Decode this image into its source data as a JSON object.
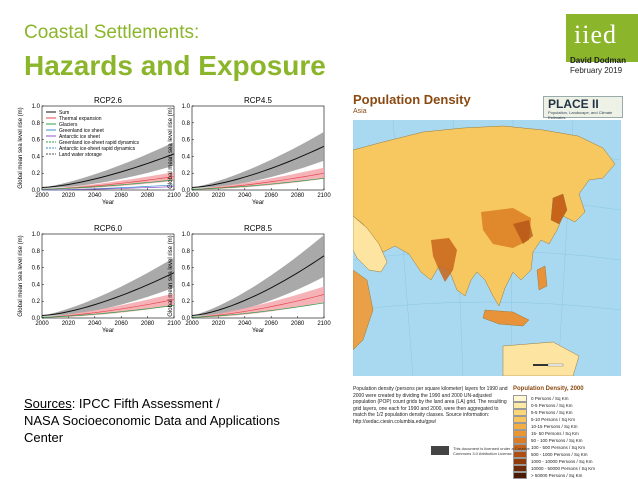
{
  "slide": {
    "title_line1": "Coastal Settlements:",
    "title_line2": "Hazards and Exposure",
    "logo_text": "iied",
    "author": "David Dodman",
    "date": "February 2019",
    "sources_label": "Sources",
    "sources_rest": ": IPCC Fifth Assessment /",
    "sources_line2": "NASA Socioeconomic Data and Applications",
    "sources_line3": "Center"
  },
  "colors": {
    "accent": "#8bb52a",
    "map_title": "#8a4a12"
  },
  "chart_data": [
    {
      "type": "line",
      "title": "RCP2.6",
      "xlabel": "Year",
      "ylabel": "Global mean sea level rise (m)",
      "xlim": [
        2000,
        2100
      ],
      "ylim": [
        0,
        1.0
      ],
      "x_ticks": [
        "2000",
        "2020",
        "2040",
        "2060",
        "2080",
        "2100"
      ],
      "y_ticks": [
        "0.0",
        "0.2",
        "0.4",
        "0.6",
        "0.8",
        "1.0"
      ],
      "legend": [
        "Sum",
        "Thermal expansion",
        "Glaciers",
        "Greenland ice sheet",
        "Antarctic ice sheet",
        "Greenland ice-sheet rapid dynamics",
        "Antarctic ice-sheet rapid dynamics",
        "Land water storage"
      ],
      "x": [
        2000,
        2100
      ],
      "series": [
        {
          "name": "Sum",
          "values": [
            0.03,
            0.43
          ]
        },
        {
          "name": "Thermal expansion",
          "values": [
            0.01,
            0.16
          ]
        },
        {
          "name": "Glaciers",
          "values": [
            0.01,
            0.12
          ]
        },
        {
          "name": "Greenland ice sheet",
          "values": [
            0.0,
            0.06
          ]
        },
        {
          "name": "Antarctic ice sheet",
          "values": [
            0.0,
            0.04
          ]
        }
      ]
    },
    {
      "type": "line",
      "title": "RCP4.5",
      "xlabel": "Year",
      "ylabel": "Global mean sea level rise (m)",
      "xlim": [
        2000,
        2100
      ],
      "ylim": [
        0,
        1.0
      ],
      "x_ticks": [
        "2000",
        "2020",
        "2040",
        "2060",
        "2080",
        "2100"
      ],
      "y_ticks": [
        "0.0",
        "0.2",
        "0.4",
        "0.6",
        "0.8",
        "1.0"
      ],
      "x": [
        2000,
        2100
      ],
      "series": [
        {
          "name": "Sum",
          "values": [
            0.03,
            0.52
          ]
        },
        {
          "name": "Thermal expansion",
          "values": [
            0.01,
            0.2
          ]
        },
        {
          "name": "Glaciers",
          "values": [
            0.01,
            0.14
          ]
        }
      ]
    },
    {
      "type": "line",
      "title": "RCP6.0",
      "xlabel": "Year",
      "ylabel": "Global mean sea level rise (m)",
      "xlim": [
        2000,
        2100
      ],
      "ylim": [
        0,
        1.0
      ],
      "x_ticks": [
        "2000",
        "2020",
        "2040",
        "2060",
        "2080",
        "2100"
      ],
      "y_ticks": [
        "0.0",
        "0.2",
        "0.4",
        "0.6",
        "0.8",
        "1.0"
      ],
      "x": [
        2000,
        2100
      ],
      "series": [
        {
          "name": "Sum",
          "values": [
            0.03,
            0.54
          ]
        },
        {
          "name": "Thermal expansion",
          "values": [
            0.01,
            0.22
          ]
        },
        {
          "name": "Glaciers",
          "values": [
            0.01,
            0.15
          ]
        }
      ]
    },
    {
      "type": "line",
      "title": "RCP8.5",
      "xlabel": "Year",
      "ylabel": "Global mean sea level rise (m)",
      "xlim": [
        2000,
        2100
      ],
      "ylim": [
        0,
        1.0
      ],
      "x_ticks": [
        "2000",
        "2020",
        "2040",
        "2060",
        "2080",
        "2100"
      ],
      "y_ticks": [
        "0.0",
        "0.2",
        "0.4",
        "0.6",
        "0.8",
        "1.0"
      ],
      "x": [
        2000,
        2100
      ],
      "series": [
        {
          "name": "Sum",
          "values": [
            0.03,
            0.74
          ]
        },
        {
          "name": "Thermal expansion",
          "values": [
            0.01,
            0.28
          ]
        },
        {
          "name": "Glaciers",
          "values": [
            0.01,
            0.18
          ]
        }
      ]
    }
  ],
  "map": {
    "title": "Population Density",
    "subtitle": "Asia",
    "place_title": "PLACE II",
    "place_sub": "Population, Landscape, and Climate Estimates",
    "description": "Population density (persons per square kilometer) layers for 1990 and 2000 were created by dividing the 1990 and 2000 UN-adjusted population (POP) count grids by the land area (LA) grid. The resulting grid layers, one each for 1990 and 2000, were then aggregated to match the 1/2 population density classes. Source information: http://sedac.ciesin.columbia.edu/gpw/",
    "legend_title": "Population Density, 2000",
    "legend_items": [
      {
        "label": "0 Persons / Sq Km",
        "color": "#fff8d2"
      },
      {
        "label": "0-5 Persons / Sq Km",
        "color": "#fdeaa6"
      },
      {
        "label": "5-5 Persons / Sq Km",
        "color": "#fbd77c"
      },
      {
        "label": "5-10 Persons / Sq Km",
        "color": "#f8c45e"
      },
      {
        "label": "10-15 Persons / Sq Km",
        "color": "#f3ad45"
      },
      {
        "label": "15- 50 Persons / Sq Km",
        "color": "#ea9633"
      },
      {
        "label": "50 - 100 Persons / Sq Km",
        "color": "#dc7d25"
      },
      {
        "label": "100 - 500 Persons / Sq Km",
        "color": "#c8641a"
      },
      {
        "label": "500 - 1000 Persons / Sq Km",
        "color": "#ae4e12"
      },
      {
        "label": "1000 - 10000 Persons / Sq Km",
        "color": "#8f3b0c"
      },
      {
        "label": "10000 - 50000 Persons / Sq Km",
        "color": "#6d2a08"
      },
      {
        "label": "> 50000 Persons / Sq Km",
        "color": "#4a1a05"
      }
    ],
    "license_text": "This document is licensed under a Creative Commons 3.0 Attribution License."
  }
}
